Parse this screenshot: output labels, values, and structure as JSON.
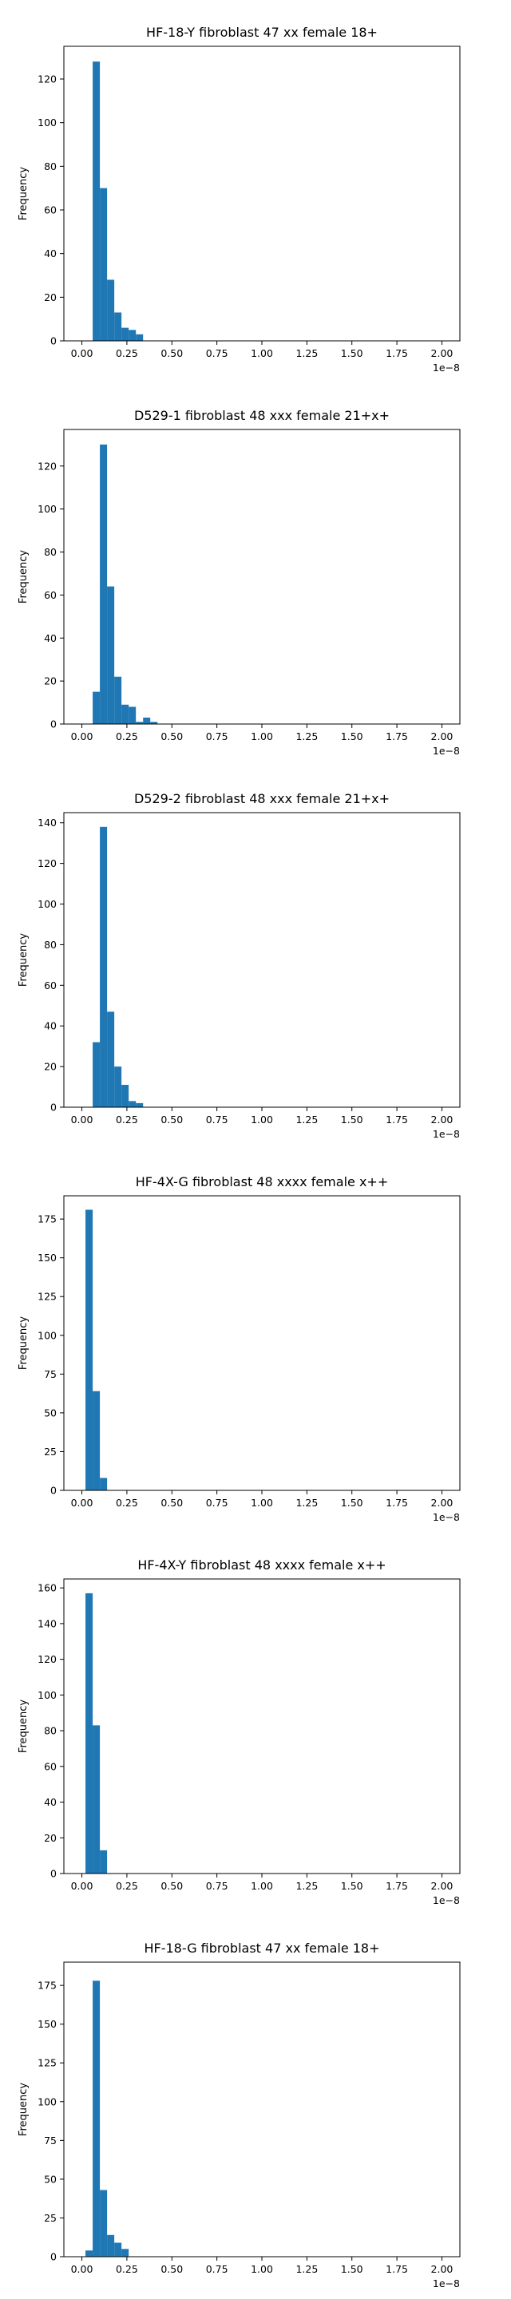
{
  "chart_data": [
    {
      "type": "bar",
      "title": "HF-18-Y fibroblast 47 xx female 18+",
      "xlabel": "",
      "ylabel": "Frequency",
      "x_multiplier": "1e−8",
      "xlim": [
        -0.1,
        2.1
      ],
      "ylim": [
        0,
        135
      ],
      "xticks": [
        "0.00",
        "0.25",
        "0.50",
        "0.75",
        "1.00",
        "1.25",
        "1.50",
        "1.75",
        "2.00"
      ],
      "yticks": [
        "0",
        "20",
        "40",
        "60",
        "80",
        "100",
        "120"
      ],
      "bar_color": "#1f77b4",
      "bin_width": 0.04,
      "bins": [
        {
          "x": 0.04,
          "count": 0
        },
        {
          "x": 0.06,
          "count": 128
        },
        {
          "x": 0.1,
          "count": 70
        },
        {
          "x": 0.14,
          "count": 28
        },
        {
          "x": 0.18,
          "count": 13
        },
        {
          "x": 0.22,
          "count": 6
        },
        {
          "x": 0.26,
          "count": 5
        },
        {
          "x": 0.3,
          "count": 3
        }
      ]
    },
    {
      "type": "bar",
      "title": "D529-1 fibroblast 48 xxx female 21+x+",
      "xlabel": "",
      "ylabel": "Frequency",
      "x_multiplier": "1e−8",
      "xlim": [
        -0.1,
        2.1
      ],
      "ylim": [
        0,
        137
      ],
      "xticks": [
        "0.00",
        "0.25",
        "0.50",
        "0.75",
        "1.00",
        "1.25",
        "1.50",
        "1.75",
        "2.00"
      ],
      "yticks": [
        "0",
        "20",
        "40",
        "60",
        "80",
        "100",
        "120"
      ],
      "bar_color": "#1f77b4",
      "bin_width": 0.04,
      "bins": [
        {
          "x": 0.06,
          "count": 15
        },
        {
          "x": 0.1,
          "count": 130
        },
        {
          "x": 0.14,
          "count": 64
        },
        {
          "x": 0.18,
          "count": 22
        },
        {
          "x": 0.22,
          "count": 9
        },
        {
          "x": 0.26,
          "count": 8
        },
        {
          "x": 0.3,
          "count": 1
        },
        {
          "x": 0.34,
          "count": 3
        },
        {
          "x": 0.38,
          "count": 1
        }
      ]
    },
    {
      "type": "bar",
      "title": "D529-2 fibroblast 48 xxx female 21+x+",
      "xlabel": "",
      "ylabel": "Frequency",
      "x_multiplier": "1e−8",
      "xlim": [
        -0.1,
        2.1
      ],
      "ylim": [
        0,
        145
      ],
      "xticks": [
        "0.00",
        "0.25",
        "0.50",
        "0.75",
        "1.00",
        "1.25",
        "1.50",
        "1.75",
        "2.00"
      ],
      "yticks": [
        "0",
        "20",
        "40",
        "60",
        "80",
        "100",
        "120",
        "140"
      ],
      "bar_color": "#1f77b4",
      "bin_width": 0.04,
      "bins": [
        {
          "x": 0.06,
          "count": 32
        },
        {
          "x": 0.1,
          "count": 138
        },
        {
          "x": 0.14,
          "count": 47
        },
        {
          "x": 0.18,
          "count": 20
        },
        {
          "x": 0.22,
          "count": 11
        },
        {
          "x": 0.26,
          "count": 3
        },
        {
          "x": 0.3,
          "count": 2
        }
      ]
    },
    {
      "type": "bar",
      "title": "HF-4X-G fibroblast 48 xxxx female x++",
      "xlabel": "",
      "ylabel": "Frequency",
      "x_multiplier": "1e−8",
      "xlim": [
        -0.1,
        2.1
      ],
      "ylim": [
        0,
        190
      ],
      "xticks": [
        "0.00",
        "0.25",
        "0.50",
        "0.75",
        "1.00",
        "1.25",
        "1.50",
        "1.75",
        "2.00"
      ],
      "yticks": [
        "0",
        "25",
        "50",
        "75",
        "100",
        "125",
        "150",
        "175"
      ],
      "bar_color": "#1f77b4",
      "bin_width": 0.04,
      "bins": [
        {
          "x": 0.02,
          "count": 181
        },
        {
          "x": 0.06,
          "count": 64
        },
        {
          "x": 0.1,
          "count": 8
        }
      ]
    },
    {
      "type": "bar",
      "title": "HF-4X-Y fibroblast 48 xxxx female x++",
      "xlabel": "",
      "ylabel": "Frequency",
      "x_multiplier": "1e−8",
      "xlim": [
        -0.1,
        2.1
      ],
      "ylim": [
        0,
        165
      ],
      "xticks": [
        "0.00",
        "0.25",
        "0.50",
        "0.75",
        "1.00",
        "1.25",
        "1.50",
        "1.75",
        "2.00"
      ],
      "yticks": [
        "0",
        "20",
        "40",
        "60",
        "80",
        "100",
        "120",
        "140",
        "160"
      ],
      "bar_color": "#1f77b4",
      "bin_width": 0.04,
      "bins": [
        {
          "x": 0.02,
          "count": 157
        },
        {
          "x": 0.06,
          "count": 83
        },
        {
          "x": 0.1,
          "count": 13
        }
      ]
    },
    {
      "type": "bar",
      "title": "HF-18-G fibroblast 47 xx female 18+",
      "xlabel": "",
      "ylabel": "Frequency",
      "x_multiplier": "1e−8",
      "xlim": [
        -0.1,
        2.1
      ],
      "ylim": [
        0,
        190
      ],
      "xticks": [
        "0.00",
        "0.25",
        "0.50",
        "0.75",
        "1.00",
        "1.25",
        "1.50",
        "1.75",
        "2.00"
      ],
      "yticks": [
        "0",
        "25",
        "50",
        "75",
        "100",
        "125",
        "150",
        "175"
      ],
      "bar_color": "#1f77b4",
      "bin_width": 0.04,
      "bins": [
        {
          "x": 0.02,
          "count": 4
        },
        {
          "x": 0.06,
          "count": 178
        },
        {
          "x": 0.1,
          "count": 43
        },
        {
          "x": 0.14,
          "count": 14
        },
        {
          "x": 0.18,
          "count": 9
        },
        {
          "x": 0.22,
          "count": 5
        }
      ]
    }
  ]
}
